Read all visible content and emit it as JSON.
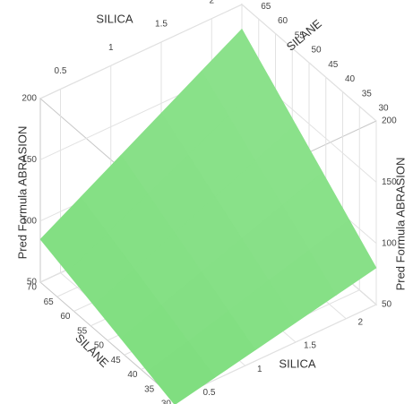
{
  "chart_data": {
    "type": "surface",
    "x_label": "SILICA",
    "y_label": "SILANE",
    "z_label": "Pred Formula ABRASION",
    "color": "#5fd65f",
    "x": [
      0.3,
      0.7,
      1.1,
      1.5,
      1.9,
      2.3
    ],
    "y": [
      30,
      38,
      46,
      54,
      62,
      70
    ],
    "z": [
      [
        45,
        52,
        59,
        66,
        73,
        80
      ],
      [
        53,
        62.4,
        71.8,
        81.2,
        90.6,
        100
      ],
      [
        61,
        72.8,
        84.6,
        96.4,
        108.2,
        120
      ],
      [
        69,
        83.2,
        97.4,
        111.6,
        125.8,
        140
      ],
      [
        77,
        93.6,
        110.2,
        126.8,
        143.4,
        160
      ],
      [
        85,
        104,
        123,
        142,
        161,
        180
      ]
    ],
    "xlim": [
      0.3,
      2.3
    ],
    "ylim": [
      30,
      70
    ],
    "zlim": [
      50,
      200
    ],
    "xticks": [
      0.5,
      1,
      1.5,
      2
    ],
    "yticks": [
      30,
      35,
      40,
      45,
      50,
      55,
      60,
      65,
      70
    ],
    "zticks": [
      50,
      100,
      150,
      200
    ],
    "grid": true
  }
}
